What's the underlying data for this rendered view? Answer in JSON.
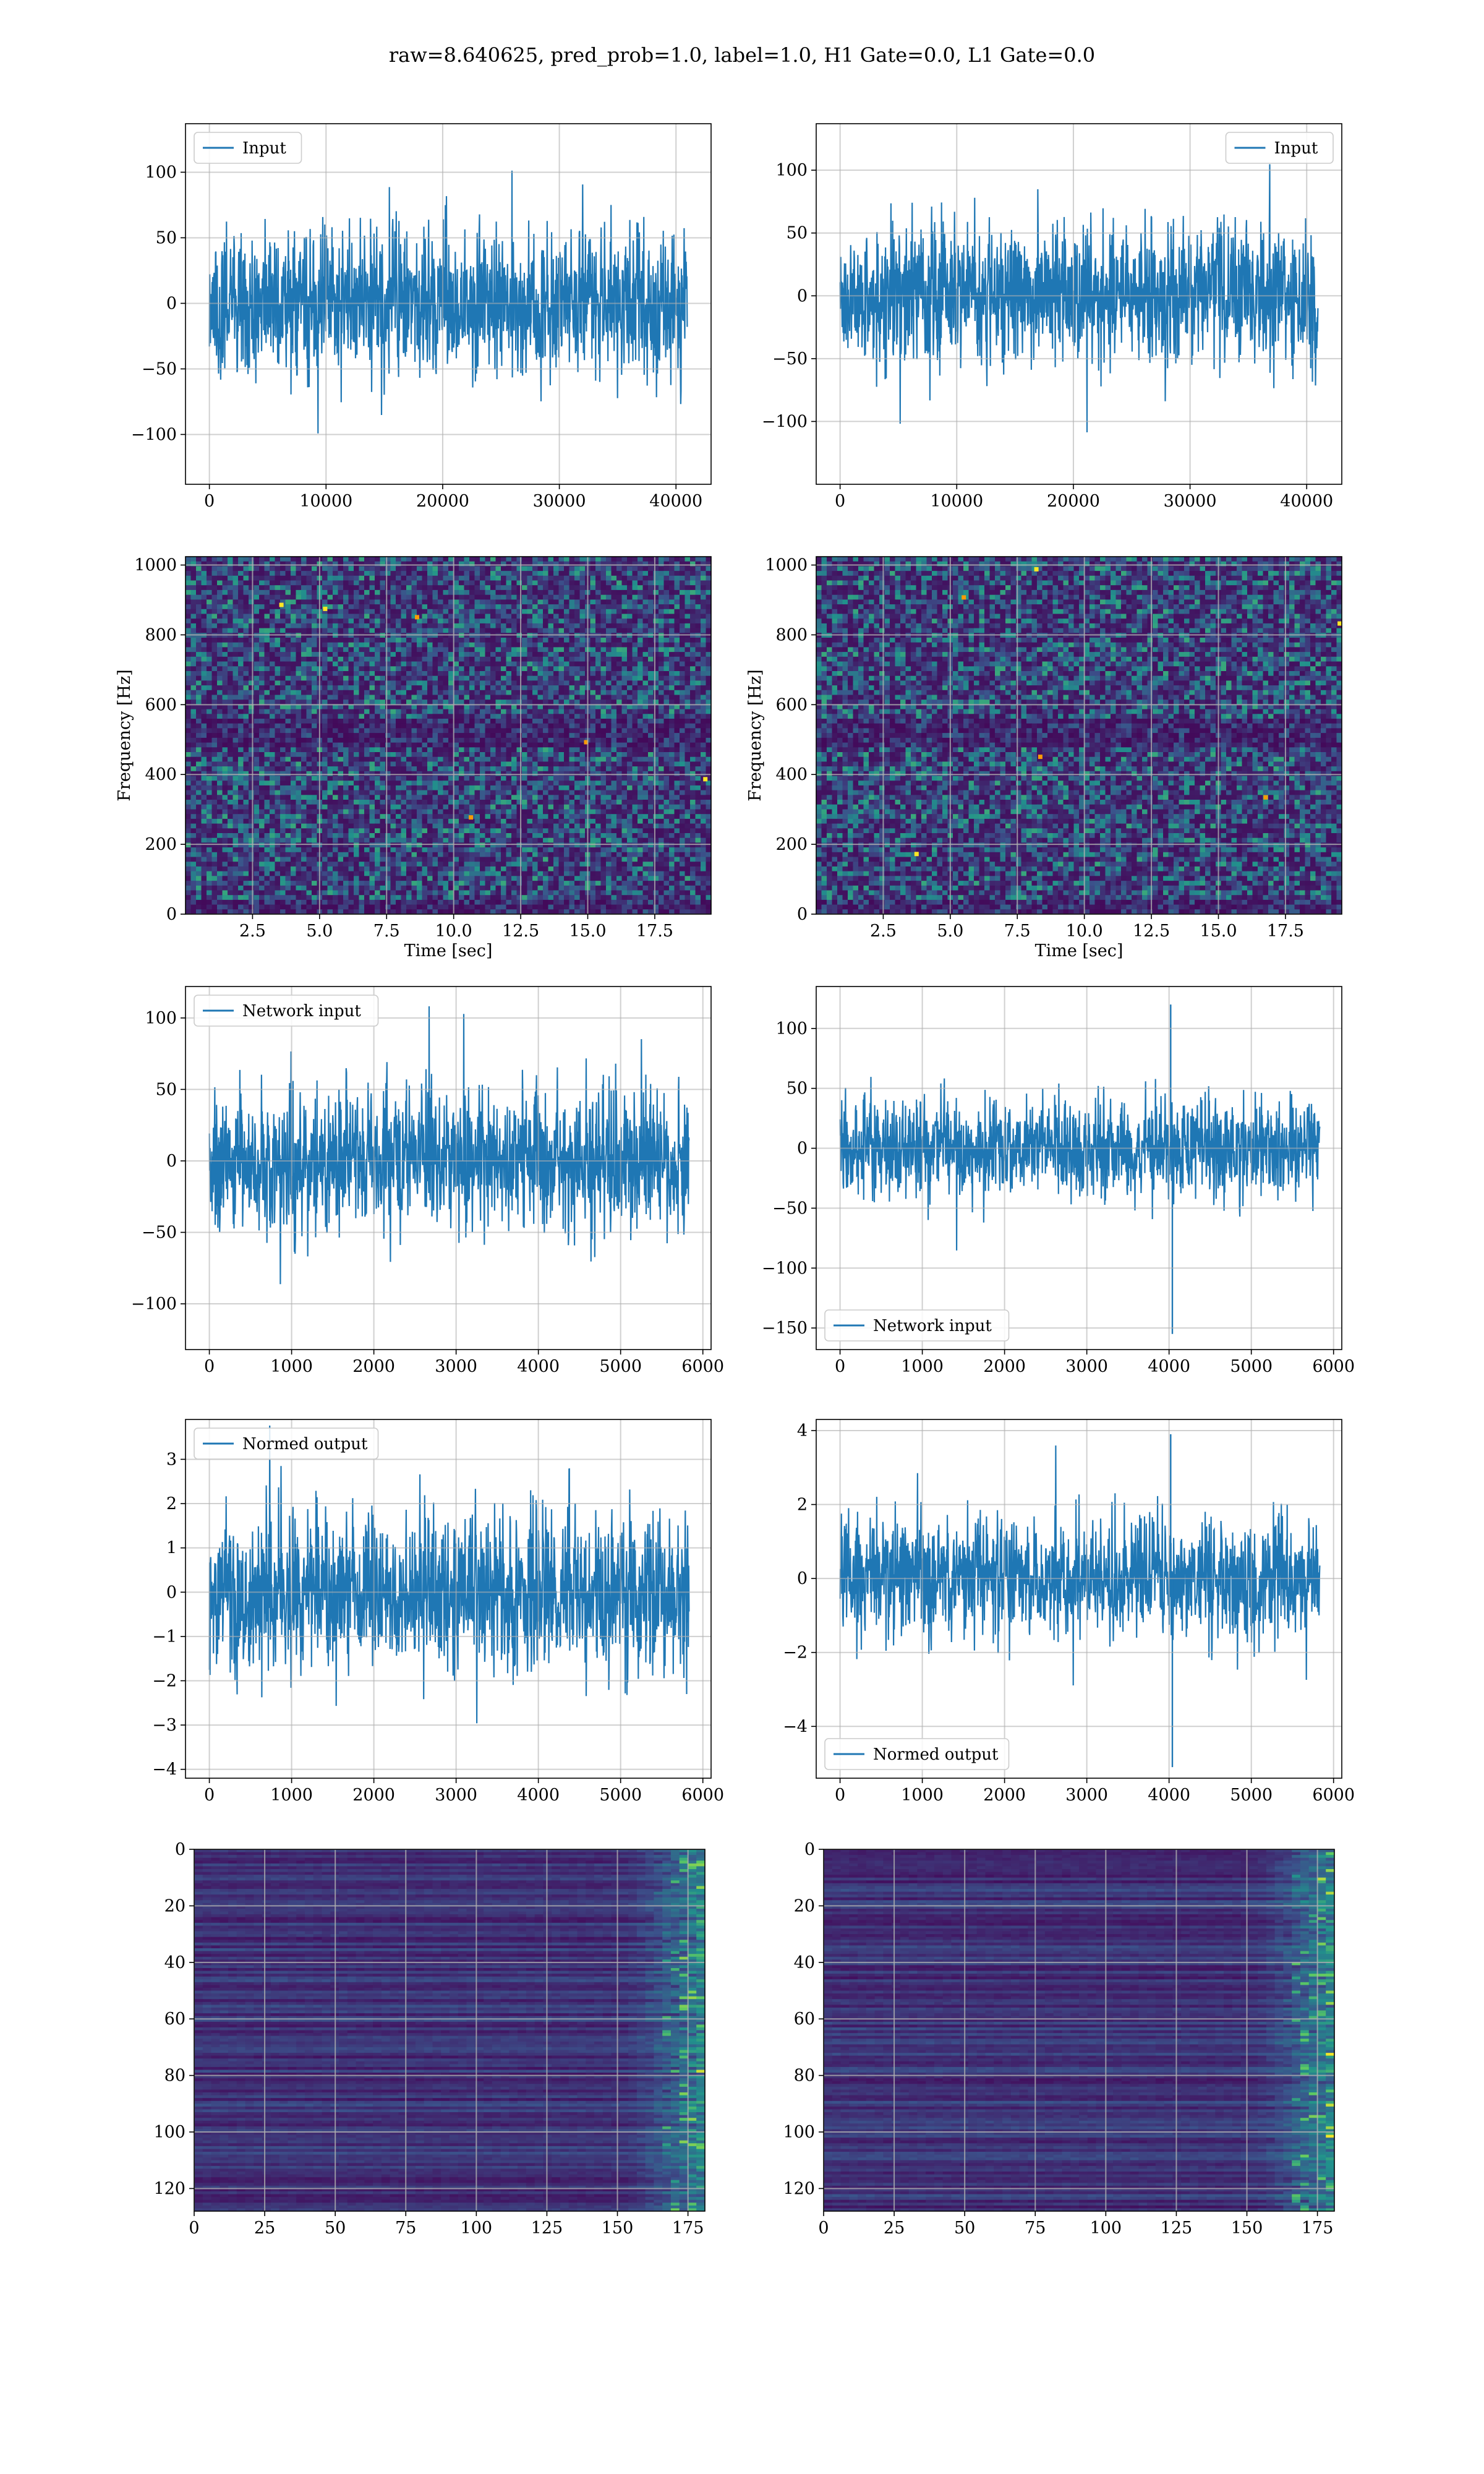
{
  "figure_title": "raw=8.640625, pred_prob=1.0, label=1.0, H1 Gate=0.0, L1 Gate=0.0",
  "colors": {
    "line": "#1f77b4",
    "grid": "#b0b0b0",
    "viridis_dark": "#440154",
    "viridis_mid": "#3b528b",
    "viridis_teal": "#21918c",
    "viridis_green": "#5ec962",
    "viridis_yellow": "#fde725"
  },
  "chart_data": [
    {
      "id": "input_h1",
      "type": "line",
      "legend": "Input",
      "legend_loc": "upper left",
      "xlim": [
        -2048,
        43008
      ],
      "ylim": [
        -138,
        137
      ],
      "xticks": [
        0,
        10000,
        20000,
        30000,
        40000
      ],
      "xtick_labels": [
        "0",
        "10000",
        "20000",
        "30000",
        "40000"
      ],
      "yticks": [
        -100,
        -50,
        0,
        50,
        100
      ],
      "ytick_labels": [
        "−100",
        "−50",
        "0",
        "50",
        "100"
      ],
      "x_range": [
        0,
        40960
      ],
      "amp": 28,
      "spikes": [],
      "seed": 11,
      "xlabel": "",
      "ylabel": "",
      "grid": true
    },
    {
      "id": "input_l1",
      "type": "line",
      "legend": "Input",
      "legend_loc": "upper right",
      "xlim": [
        -2048,
        43008
      ],
      "ylim": [
        -150,
        137
      ],
      "xticks": [
        0,
        10000,
        20000,
        30000,
        40000
      ],
      "xtick_labels": [
        "0",
        "10000",
        "20000",
        "30000",
        "40000"
      ],
      "yticks": [
        -100,
        -50,
        0,
        50,
        100
      ],
      "ytick_labels": [
        "−100",
        "−50",
        "0",
        "50",
        "100"
      ],
      "x_range": [
        0,
        40960
      ],
      "amp": 27,
      "spikes": [],
      "seed": 23,
      "xlabel": "",
      "ylabel": "",
      "grid": true
    },
    {
      "id": "spec_h1",
      "type": "heatmap",
      "xlim": [
        0,
        19.6
      ],
      "ylim": [
        0,
        1024
      ],
      "xticks": [
        2.5,
        5.0,
        7.5,
        10.0,
        12.5,
        15.0,
        17.5
      ],
      "xtick_labels": [
        "2.5",
        "5.0",
        "7.5",
        "10.0",
        "12.5",
        "15.0",
        "17.5"
      ],
      "yticks": [
        0,
        200,
        400,
        600,
        800,
        1000
      ],
      "ytick_labels": [
        "0",
        "200",
        "400",
        "600",
        "800",
        "1000"
      ],
      "xlabel": "Time [sec]",
      "ylabel": "Frequency [Hz]",
      "grid": true,
      "seed": 5,
      "style": "spectrogram"
    },
    {
      "id": "spec_l1",
      "type": "heatmap",
      "xlim": [
        0,
        19.6
      ],
      "ylim": [
        0,
        1024
      ],
      "xticks": [
        2.5,
        5.0,
        7.5,
        10.0,
        12.5,
        15.0,
        17.5
      ],
      "xtick_labels": [
        "2.5",
        "5.0",
        "7.5",
        "10.0",
        "12.5",
        "15.0",
        "17.5"
      ],
      "yticks": [
        0,
        200,
        400,
        600,
        800,
        1000
      ],
      "ytick_labels": [
        "0",
        "200",
        "400",
        "600",
        "800",
        "1000"
      ],
      "xlabel": "Time [sec]",
      "ylabel": "Frequency [Hz]",
      "grid": true,
      "seed": 9,
      "style": "spectrogram"
    },
    {
      "id": "net_h1",
      "type": "line",
      "legend": "Network input",
      "legend_loc": "upper left",
      "xlim": [
        -290,
        6100
      ],
      "ylim": [
        -132,
        122
      ],
      "xticks": [
        0,
        1000,
        2000,
        3000,
        4000,
        5000,
        6000
      ],
      "xtick_labels": [
        "0",
        "1000",
        "2000",
        "3000",
        "4000",
        "5000",
        "6000"
      ],
      "yticks": [
        -100,
        -50,
        0,
        50,
        100
      ],
      "ytick_labels": [
        "−100",
        "−50",
        "0",
        "50",
        "100"
      ],
      "x_range": [
        0,
        5832
      ],
      "amp": 25,
      "spikes": [],
      "seed": 31,
      "xlabel": "",
      "ylabel": "",
      "grid": true
    },
    {
      "id": "net_l1",
      "type": "line",
      "legend": "Network input",
      "legend_loc": "lower left",
      "xlim": [
        -290,
        6100
      ],
      "ylim": [
        -168,
        135
      ],
      "xticks": [
        0,
        1000,
        2000,
        3000,
        4000,
        5000,
        6000
      ],
      "xtick_labels": [
        "0",
        "1000",
        "2000",
        "3000",
        "4000",
        "5000",
        "6000"
      ],
      "yticks": [
        -150,
        -100,
        -50,
        0,
        50,
        100
      ],
      "ytick_labels": [
        "−150",
        "−100",
        "−50",
        "0",
        "50",
        "100"
      ],
      "x_range": [
        0,
        5832
      ],
      "amp": 20,
      "spikes": [
        {
          "x": 4020,
          "y": 120
        },
        {
          "x": 4040,
          "y": -155
        }
      ],
      "seed": 37,
      "xlabel": "",
      "ylabel": "",
      "grid": true
    },
    {
      "id": "norm_h1",
      "type": "line",
      "legend": "Normed output",
      "legend_loc": "upper left",
      "xlim": [
        -290,
        6100
      ],
      "ylim": [
        -4.2,
        3.9
      ],
      "xticks": [
        0,
        1000,
        2000,
        3000,
        4000,
        5000,
        6000
      ],
      "xtick_labels": [
        "0",
        "1000",
        "2000",
        "3000",
        "4000",
        "5000",
        "6000"
      ],
      "yticks": [
        -4,
        -3,
        -2,
        -1,
        0,
        1,
        2,
        3
      ],
      "ytick_labels": [
        "−4",
        "−3",
        "−2",
        "−1",
        "0",
        "1",
        "2",
        "3"
      ],
      "x_range": [
        0,
        5832
      ],
      "amp": 0.9,
      "spikes": [],
      "seed": 41,
      "xlabel": "",
      "ylabel": "",
      "grid": true
    },
    {
      "id": "norm_l1",
      "type": "line",
      "legend": "Normed output",
      "legend_loc": "lower left",
      "xlim": [
        -290,
        6100
      ],
      "ylim": [
        -5.4,
        4.3
      ],
      "xticks": [
        0,
        1000,
        2000,
        3000,
        4000,
        5000,
        6000
      ],
      "xtick_labels": [
        "0",
        "1000",
        "2000",
        "3000",
        "4000",
        "5000",
        "6000"
      ],
      "yticks": [
        -4,
        -2,
        0,
        2,
        4
      ],
      "ytick_labels": [
        "−4",
        "−2",
        "0",
        "2",
        "4"
      ],
      "x_range": [
        0,
        5832
      ],
      "amp": 0.8,
      "spikes": [
        {
          "x": 4020,
          "y": 3.9
        },
        {
          "x": 4040,
          "y": -5.1
        }
      ],
      "seed": 43,
      "xlabel": "",
      "ylabel": "",
      "grid": true
    },
    {
      "id": "feat_h1",
      "type": "heatmap",
      "xlim": [
        0,
        181
      ],
      "ylim": [
        128,
        0
      ],
      "xticks": [
        0,
        25,
        50,
        75,
        100,
        125,
        150,
        175
      ],
      "xtick_labels": [
        "0",
        "25",
        "50",
        "75",
        "100",
        "125",
        "150",
        "175"
      ],
      "yticks": [
        0,
        20,
        40,
        60,
        80,
        100,
        120
      ],
      "ytick_labels": [
        "0",
        "20",
        "40",
        "60",
        "80",
        "100",
        "120"
      ],
      "xlabel": "",
      "ylabel": "",
      "grid": true,
      "seed": 17,
      "style": "features"
    },
    {
      "id": "feat_l1",
      "type": "heatmap",
      "xlim": [
        0,
        181
      ],
      "ylim": [
        128,
        0
      ],
      "xticks": [
        0,
        25,
        50,
        75,
        100,
        125,
        150,
        175
      ],
      "xtick_labels": [
        "0",
        "25",
        "50",
        "75",
        "100",
        "125",
        "150",
        "175"
      ],
      "yticks": [
        0,
        20,
        40,
        60,
        80,
        100,
        120
      ],
      "ytick_labels": [
        "0",
        "20",
        "40",
        "60",
        "80",
        "100",
        "120"
      ],
      "xlabel": "",
      "ylabel": "",
      "grid": true,
      "seed": 29,
      "style": "features"
    }
  ]
}
